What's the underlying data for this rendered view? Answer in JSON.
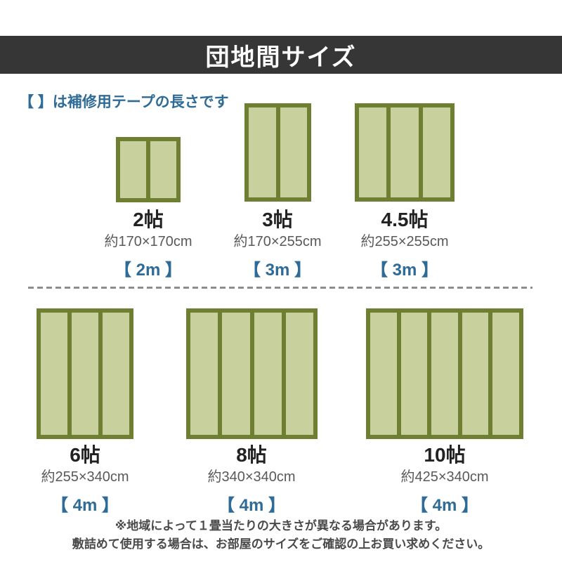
{
  "header": {
    "title": "団地間サイズ"
  },
  "note": "【 】は補修用テープの長さです",
  "colors": {
    "header_bg": "#363636",
    "header_text": "#ffffff",
    "accent_blue": "#2e6b97",
    "mat_border": "#6e7f31",
    "mat_fill": "#c8d09d",
    "name_text": "#222222",
    "size_text": "#595959",
    "footer_text": "#4a4a4a",
    "divider": "#8d8d8d"
  },
  "mats": [
    {
      "name": "2帖",
      "size": "約170×170cm",
      "tape": "【 2m 】",
      "panels": 2
    },
    {
      "name": "3帖",
      "size": "約170×255cm",
      "tape": "【 3m 】",
      "panels": 2
    },
    {
      "name": "4.5帖",
      "size": "約255×255cm",
      "tape": "【 3m 】",
      "panels": 3
    },
    {
      "name": "6帖",
      "size": "約255×340cm",
      "tape": "【 4m 】",
      "panels": 3
    },
    {
      "name": "8帖",
      "size": "約340×340cm",
      "tape": "【 4m 】",
      "panels": 4
    },
    {
      "name": "10帖",
      "size": "約425×340cm",
      "tape": "【 4m 】",
      "panels": 5
    }
  ],
  "footer": {
    "line1": "※地域によって１畳当たりの大きさが異なる場合があります。",
    "line2": "敷詰めて使用する場合は、お部屋のサイズをご確認の上お買い求めください。"
  }
}
